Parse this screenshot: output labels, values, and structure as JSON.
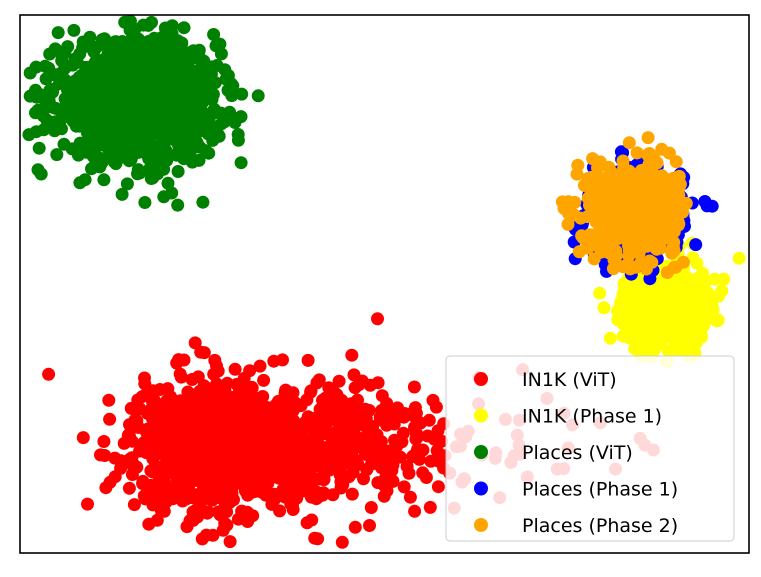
{
  "chart_data": {
    "type": "scatter",
    "title": "",
    "xlabel": "",
    "ylabel": "",
    "xlim": [
      0,
      100
    ],
    "ylim": [
      0,
      100
    ],
    "grid": false,
    "axes_ticks": false,
    "legend": {
      "placement": "bottom-right",
      "entries": [
        "IN1K (ViT)",
        "IN1K (Phase 1)",
        "Places (ViT)",
        "Places (Phase 1)",
        "Places (Phase 2)"
      ]
    },
    "series": [
      {
        "name": "IN1K (ViT)",
        "color": "#ff0000",
        "n": 1500,
        "cx": 29,
        "cy": 20,
        "sx": 6.5,
        "sy": 6.0,
        "skew": 2.2
      },
      {
        "name": "IN1K (Phase 1)",
        "color": "#ffff00",
        "n": 700,
        "cx": 88.5,
        "cy": 46.5,
        "sx": 2.8,
        "sy": 3.8,
        "skew": 0
      },
      {
        "name": "Places (ViT)",
        "color": "#008000",
        "n": 1300,
        "cx": 16,
        "cy": 84,
        "sx": 5.5,
        "sy": 5.5,
        "skew": 0
      },
      {
        "name": "Places (Phase 1)",
        "color": "#0000ff",
        "n": 500,
        "cx": 84.5,
        "cy": 63,
        "sx": 3.2,
        "sy": 4.2,
        "skew": 0
      },
      {
        "name": "Places (Phase 2)",
        "color": "#ffa500",
        "n": 700,
        "cx": 84,
        "cy": 64,
        "sx": 3.0,
        "sy": 4.0,
        "skew": 0
      }
    ]
  }
}
